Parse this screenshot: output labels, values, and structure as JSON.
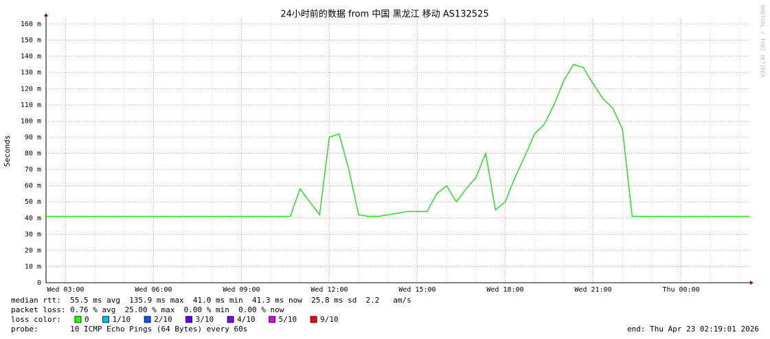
{
  "chart_data": {
    "type": "line",
    "title": "24小时前的数据 from 中国 黑龙江 移动 AS132525",
    "y_label": "Seconds",
    "side_text": "RRDTOOL / TOBI OETIKER",
    "categories": [
      null,
      null,
      "Wed 03:00",
      null,
      null,
      null,
      null,
      null,
      null,
      null,
      null,
      "Wed 06:00",
      null,
      null,
      null,
      null,
      null,
      null,
      null,
      null,
      "Wed 09:00",
      null,
      null,
      null,
      null,
      null,
      null,
      null,
      null,
      "Wed 12:00",
      null,
      null,
      null,
      null,
      null,
      null,
      null,
      null,
      "Wed 15:00",
      null,
      null,
      null,
      null,
      null,
      null,
      null,
      null,
      "Wed 18:00",
      null,
      null,
      null,
      null,
      null,
      null,
      null,
      null,
      "Wed 21:00",
      null,
      null,
      null,
      null,
      null,
      null,
      null,
      null,
      "Thu 00:00",
      null,
      null,
      null,
      null,
      null,
      null,
      null
    ],
    "series": [
      {
        "name": "median rtt",
        "color": "#22dd22",
        "values": [
          41,
          41,
          41,
          41,
          41,
          41,
          41,
          41,
          41,
          41,
          41,
          41,
          41,
          41,
          41,
          41,
          41,
          41,
          41,
          41,
          41,
          41,
          41,
          41,
          41,
          41,
          58,
          50,
          42,
          90,
          92,
          70,
          42,
          41,
          41,
          42,
          43,
          44,
          44,
          44,
          55,
          60,
          50,
          58,
          65,
          80,
          45,
          50,
          65,
          78,
          92,
          98,
          110,
          125,
          135,
          133,
          123,
          114,
          108,
          95,
          41,
          41,
          41,
          41,
          41,
          41,
          41,
          41,
          41,
          41,
          41,
          41,
          41
        ]
      }
    ],
    "ylim": [
      0,
      160
    ],
    "yticks": [
      0,
      {
        "value": 10,
        "label": "10 m"
      },
      {
        "value": 20,
        "label": "20 m"
      },
      {
        "value": 30,
        "label": "30 m"
      },
      {
        "value": 40,
        "label": "40 m"
      },
      {
        "value": 50,
        "label": "50 m"
      },
      {
        "value": 60,
        "label": "60 m"
      },
      {
        "value": 70,
        "label": "70 m"
      },
      {
        "value": 80,
        "label": "80 m"
      },
      {
        "value": 90,
        "label": "90 m"
      },
      {
        "value": 100,
        "label": "100 m"
      },
      {
        "value": 110,
        "label": "110 m"
      },
      {
        "value": 120,
        "label": "120 m"
      },
      {
        "value": 130,
        "label": "130 m"
      },
      {
        "value": 140,
        "label": "140 m"
      },
      {
        "value": 150,
        "label": "150 m"
      },
      {
        "value": 160,
        "label": "160 m"
      }
    ],
    "grid": true,
    "stats": {
      "median_rtt": "median rtt:  55.5 ms avg  135.9 ms max  41.0 ms min  41.3 ms now  25.8 ms sd  2.2   am/s",
      "packet_loss": "packet loss: 0.76 % avg  25.00 % max  0.00 % min  0.00 % now",
      "loss_color_label": "loss color:",
      "probe": "probe:       10 ICMP Echo Pings (64 Bytes) every 60s",
      "end": "end: Thu Apr 23 02:19:01 2026"
    },
    "loss_colors": [
      {
        "label": "0",
        "color": "#26ff00"
      },
      {
        "label": "1/10",
        "color": "#00b8ff"
      },
      {
        "label": "2/10",
        "color": "#0059ff"
      },
      {
        "label": "3/10",
        "color": "#5e00ff"
      },
      {
        "label": "4/10",
        "color": "#7e00ff"
      },
      {
        "label": "5/10",
        "color": "#dd00ff"
      },
      {
        "label": "9/10",
        "color": "#ff0000"
      }
    ]
  }
}
